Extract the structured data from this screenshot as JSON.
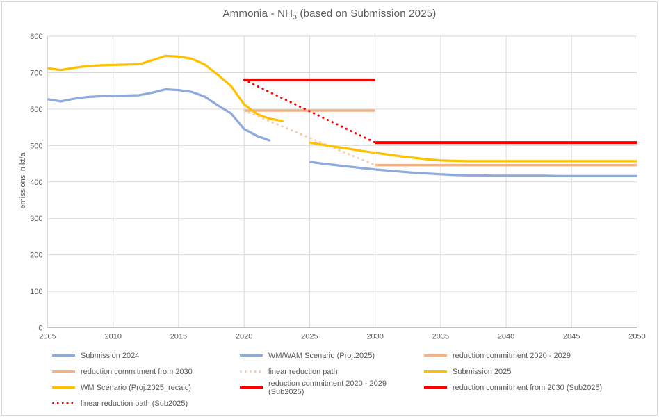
{
  "chart_data": {
    "type": "line",
    "title": "Ammonia - NH3 (based on Submission 2025)",
    "title_parts": {
      "prefix": "Ammonia - NH",
      "sub": "3",
      "suffix": " (based on Submission 2025)"
    },
    "xlabel": "",
    "ylabel": "emissions in kt/a",
    "xlim": [
      2005,
      2050
    ],
    "ylim": [
      0,
      800
    ],
    "x_ticks": [
      2005,
      2010,
      2015,
      2020,
      2025,
      2030,
      2035,
      2040,
      2045,
      2050
    ],
    "y_ticks": [
      0,
      100,
      200,
      300,
      400,
      500,
      600,
      700,
      800
    ],
    "grid": true,
    "legend_position": "bottom",
    "series": [
      {
        "name": "Submission 2024",
        "color": "#8EA9DB",
        "style": "solid",
        "width": 3.25,
        "x": [
          2005,
          2006,
          2007,
          2008,
          2009,
          2010,
          2011,
          2012,
          2013,
          2014,
          2015,
          2016,
          2017,
          2018,
          2019,
          2020,
          2021,
          2022
        ],
        "y": [
          627,
          621,
          628,
          633,
          635,
          636,
          637,
          638,
          645,
          654,
          652,
          647,
          634,
          610,
          588,
          545,
          526,
          513
        ]
      },
      {
        "name": "WM/WAM Scenario (Proj.2025)",
        "color": "#8EA9DB",
        "style": "solid",
        "width": 3.25,
        "x": [
          2025,
          2026,
          2027,
          2028,
          2029,
          2030,
          2031,
          2032,
          2033,
          2034,
          2035,
          2036,
          2037,
          2038,
          2039,
          2040,
          2041,
          2042,
          2043,
          2044,
          2045,
          2046,
          2047,
          2048,
          2049,
          2050
        ],
        "y": [
          455,
          450,
          446,
          442,
          438,
          434,
          431,
          428,
          425,
          423,
          421,
          419,
          418,
          418,
          417,
          417,
          417,
          417,
          417,
          416,
          416,
          416,
          416,
          416,
          416,
          416
        ]
      },
      {
        "name": "reduction commitment 2020 - 2029",
        "color": "#F4B183",
        "style": "solid",
        "width": 3.5,
        "x": [
          2020,
          2030
        ],
        "y": [
          596,
          596
        ]
      },
      {
        "name": "reduction commitment from 2030",
        "color": "#F4B183",
        "style": "solid",
        "width": 3.5,
        "x": [
          2030,
          2050
        ],
        "y": [
          446,
          446
        ]
      },
      {
        "name": "linear reduction path",
        "color": "#F8CBAD",
        "style": "dotted",
        "width": 3,
        "x": [
          2020,
          2030
        ],
        "y": [
          596,
          446
        ]
      },
      {
        "name": "Submission 2025",
        "color": "#FFC000",
        "style": "solid",
        "width": 3.25,
        "x": [
          2005,
          2006,
          2007,
          2008,
          2009,
          2010,
          2011,
          2012,
          2013,
          2014,
          2015,
          2016,
          2017,
          2018,
          2019,
          2020,
          2021,
          2022,
          2023
        ],
        "y": [
          712,
          707,
          713,
          718,
          720,
          721,
          722,
          723,
          734,
          746,
          744,
          738,
          722,
          694,
          663,
          613,
          586,
          573,
          567
        ]
      },
      {
        "name": "WM Scenario (Proj.2025_recalc)",
        "color": "#FFC000",
        "style": "solid",
        "width": 3.25,
        "x": [
          2025,
          2026,
          2027,
          2028,
          2029,
          2030,
          2031,
          2032,
          2033,
          2034,
          2035,
          2036,
          2037,
          2038,
          2039,
          2040,
          2041,
          2042,
          2043,
          2044,
          2045,
          2046,
          2047,
          2048,
          2049,
          2050
        ],
        "y": [
          508,
          502,
          496,
          491,
          485,
          480,
          475,
          470,
          466,
          462,
          459,
          458,
          457,
          457,
          457,
          457,
          457,
          457,
          457,
          457,
          457,
          457,
          457,
          457,
          457,
          457
        ]
      },
      {
        "name": "reduction commitment 2020 - 2029 (Sub2025)",
        "color": "#FF0000",
        "style": "solid",
        "width": 4,
        "x": [
          2020,
          2030
        ],
        "y": [
          680,
          680
        ]
      },
      {
        "name": "reduction commitment from 2030 (Sub2025)",
        "color": "#FF0000",
        "style": "solid",
        "width": 4,
        "x": [
          2030,
          2050
        ],
        "y": [
          508,
          508
        ]
      },
      {
        "name": "linear reduction path (Sub2025)",
        "color": "#FF0000",
        "style": "dotted",
        "width": 3,
        "x": [
          2020,
          2030
        ],
        "y": [
          680,
          508
        ]
      }
    ]
  },
  "legend": {
    "items": [
      {
        "label": "Submission 2024",
        "color": "#8EA9DB",
        "style": "solid"
      },
      {
        "label": "WM/WAM Scenario (Proj.2025)",
        "color": "#8EA9DB",
        "style": "solid"
      },
      {
        "label": "reduction commitment 2020 - 2029",
        "color": "#F4B183",
        "style": "solid"
      },
      {
        "label": "reduction commitment from 2030",
        "color": "#F4B183",
        "style": "solid"
      },
      {
        "label": "linear reduction path",
        "color": "#F8CBAD",
        "style": "dotted"
      },
      {
        "label": "Submission 2025",
        "color": "#FFC000",
        "style": "solid"
      },
      {
        "label": "WM Scenario (Proj.2025_recalc)",
        "color": "#FFC000",
        "style": "solid"
      },
      {
        "label": "reduction commitment 2020 - 2029 (Sub2025)",
        "color": "#FF0000",
        "style": "solid"
      },
      {
        "label": "reduction commitment from 2030 (Sub2025)",
        "color": "#FF0000",
        "style": "solid"
      },
      {
        "label": "linear reduction path (Sub2025)",
        "color": "#FF0000",
        "style": "dotted"
      }
    ]
  },
  "colors": {
    "grid": "#D9D9D9",
    "axis": "#BFBFBF",
    "text": "#595959",
    "border": "#D6D6D6",
    "background": "#FFFFFF"
  }
}
